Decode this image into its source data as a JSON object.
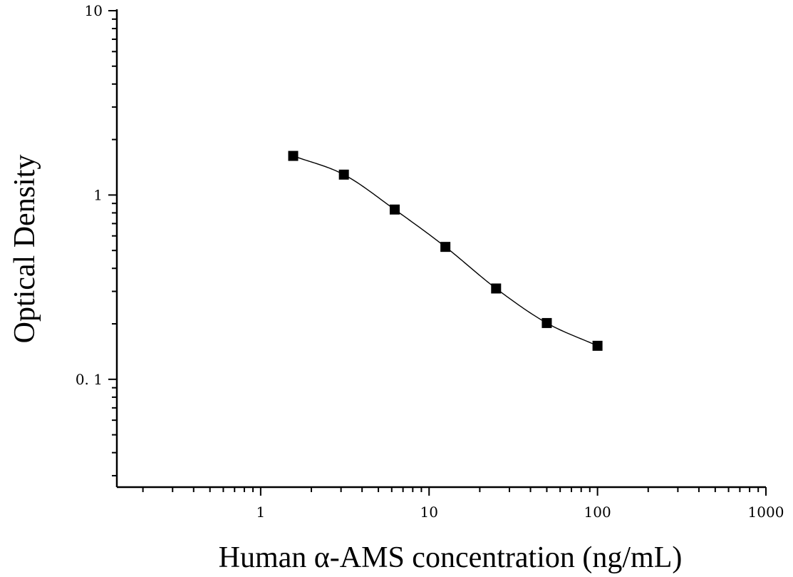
{
  "chart_data": {
    "type": "scatter",
    "title": "",
    "xlabel": "Human α-AMS concentration (ng/mL)",
    "ylabel": "Optical Density",
    "xscale": "log",
    "yscale": "log",
    "xlim": [
      0.14,
      1000
    ],
    "ylim": [
      0.026,
      10
    ],
    "xticks": [
      1,
      10,
      100,
      1000
    ],
    "xtick_labels": [
      "1",
      "10",
      "100",
      "1000"
    ],
    "yticks": [
      0.1,
      1,
      10
    ],
    "ytick_labels": [
      "0. 1",
      "1",
      "10"
    ],
    "grid": false,
    "legend": "none",
    "series": [
      {
        "x": [
          1.56,
          3.12,
          6.25,
          12.5,
          25,
          50,
          100
        ],
        "y": [
          1.63,
          1.29,
          0.834,
          0.523,
          0.311,
          0.202,
          0.152
        ]
      }
    ],
    "fit_curve": "smooth",
    "marker": "filled-square",
    "color": "#000000"
  }
}
